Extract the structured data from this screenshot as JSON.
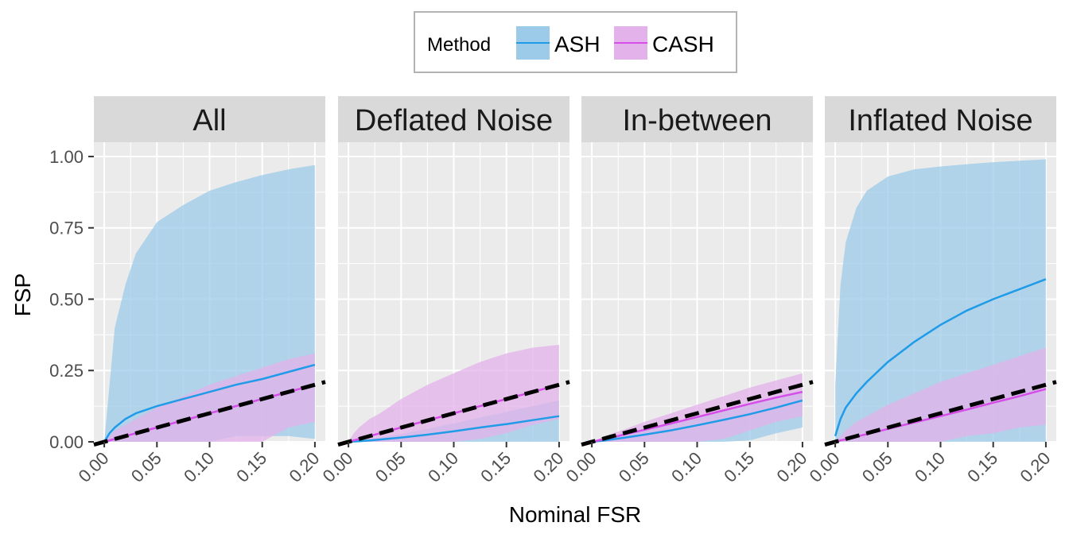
{
  "chart_data": {
    "type": "area",
    "xlabel": "Nominal FSR",
    "ylabel": "FSP",
    "xlim": [
      0,
      0.2
    ],
    "ylim": [
      0,
      1.05
    ],
    "x_ticks": [
      "0.00",
      "0.05",
      "0.10",
      "0.15",
      "0.20"
    ],
    "y_ticks": [
      "0.00",
      "0.25",
      "0.50",
      "0.75",
      "1.00"
    ],
    "grid": true,
    "legend": {
      "title": "Method",
      "placement": "top",
      "entries": [
        {
          "name": "ASH",
          "line_color": "#1f9be8",
          "fill_color": "#9ccbea"
        },
        {
          "name": "CASH",
          "line_color": "#d64ee8",
          "fill_color": "#e3b2ea"
        }
      ]
    },
    "reference_line": {
      "style": "dashed",
      "color": "#000000",
      "slope": 1
    },
    "x": [
      0,
      0.005,
      0.01,
      0.02,
      0.03,
      0.05,
      0.075,
      0.1,
      0.125,
      0.15,
      0.175,
      0.2
    ],
    "panels": [
      {
        "title": "All",
        "series": [
          {
            "name": "ASH",
            "line": [
              0,
              0.03,
              0.05,
              0.08,
              0.1,
              0.125,
              0.15,
              0.175,
              0.2,
              0.22,
              0.245,
              0.27
            ],
            "lower": [
              0,
              0,
              0,
              0,
              0,
              0,
              0,
              0,
              0.02,
              0.02,
              0.02,
              0.01
            ],
            "upper": [
              0,
              0.2,
              0.4,
              0.55,
              0.66,
              0.77,
              0.83,
              0.88,
              0.91,
              0.935,
              0.955,
              0.97
            ]
          },
          {
            "name": "CASH",
            "line": [
              0,
              0.005,
              0.01,
              0.02,
              0.03,
              0.05,
              0.075,
              0.1,
              0.125,
              0.15,
              0.175,
              0.2
            ],
            "lower": [
              0,
              0,
              0,
              0,
              0,
              0,
              0,
              0,
              0,
              0,
              0.05,
              0.07
            ],
            "upper": [
              0,
              0.02,
              0.04,
              0.06,
              0.08,
              0.12,
              0.16,
              0.2,
              0.23,
              0.26,
              0.29,
              0.31
            ]
          }
        ]
      },
      {
        "title": "Deflated Noise",
        "series": [
          {
            "name": "ASH",
            "line": [
              0,
              0.001,
              0.002,
              0.005,
              0.008,
              0.015,
              0.025,
              0.037,
              0.05,
              0.062,
              0.076,
              0.09
            ],
            "lower": [
              0,
              0,
              0,
              0,
              0,
              0,
              0,
              0,
              0,
              0,
              0,
              0
            ],
            "upper": [
              0,
              0.002,
              0.005,
              0.01,
              0.015,
              0.027,
              0.045,
              0.065,
              0.085,
              0.105,
              0.125,
              0.145
            ]
          },
          {
            "name": "CASH",
            "line": [
              0,
              0.005,
              0.01,
              0.02,
              0.03,
              0.05,
              0.075,
              0.1,
              0.125,
              0.15,
              0.175,
              0.2
            ],
            "lower": [
              0,
              0,
              0,
              0,
              0,
              0,
              0,
              0,
              0.01,
              0.03,
              0.06,
              0.08
            ],
            "upper": [
              0,
              0.03,
              0.05,
              0.08,
              0.1,
              0.15,
              0.2,
              0.24,
              0.28,
              0.31,
              0.33,
              0.34
            ]
          }
        ]
      },
      {
        "title": "In-between",
        "series": [
          {
            "name": "ASH",
            "line": [
              0,
              0.002,
              0.004,
              0.009,
              0.014,
              0.025,
              0.04,
              0.058,
              0.077,
              0.097,
              0.12,
              0.145
            ],
            "lower": [
              0,
              0,
              0,
              0,
              0,
              0,
              0,
              0,
              0,
              0.005,
              0.03,
              0.05
            ],
            "upper": [
              0,
              0.004,
              0.008,
              0.015,
              0.023,
              0.04,
              0.062,
              0.087,
              0.11,
              0.135,
              0.16,
              0.18
            ]
          },
          {
            "name": "CASH",
            "line": [
              0,
              0.004,
              0.008,
              0.016,
              0.025,
              0.042,
              0.064,
              0.087,
              0.11,
              0.133,
              0.155,
              0.175
            ],
            "lower": [
              0,
              0,
              0,
              0,
              0,
              0,
              0,
              0,
              0.01,
              0.04,
              0.07,
              0.09
            ],
            "upper": [
              0,
              0.008,
              0.015,
              0.03,
              0.042,
              0.07,
              0.1,
              0.13,
              0.16,
              0.19,
              0.215,
              0.24
            ]
          }
        ]
      },
      {
        "title": "Inflated Noise",
        "series": [
          {
            "name": "ASH",
            "line": [
              0.02,
              0.08,
              0.12,
              0.17,
              0.21,
              0.28,
              0.35,
              0.41,
              0.46,
              0.5,
              0.535,
              0.57
            ],
            "lower": [
              0,
              0,
              0,
              0,
              0,
              0,
              0,
              0,
              0,
              0,
              0,
              0
            ],
            "upper": [
              0.2,
              0.55,
              0.7,
              0.82,
              0.88,
              0.93,
              0.955,
              0.965,
              0.973,
              0.98,
              0.985,
              0.99
            ]
          },
          {
            "name": "CASH",
            "line": [
              0,
              0.005,
              0.009,
              0.018,
              0.027,
              0.045,
              0.068,
              0.09,
              0.113,
              0.137,
              0.16,
              0.185
            ],
            "lower": [
              0,
              0,
              0,
              0,
              0,
              0,
              0,
              0,
              0.02,
              0.03,
              0.05,
              0.06
            ],
            "upper": [
              0,
              0.02,
              0.04,
              0.07,
              0.09,
              0.13,
              0.17,
              0.21,
              0.24,
              0.27,
              0.3,
              0.33
            ]
          }
        ]
      }
    ]
  }
}
